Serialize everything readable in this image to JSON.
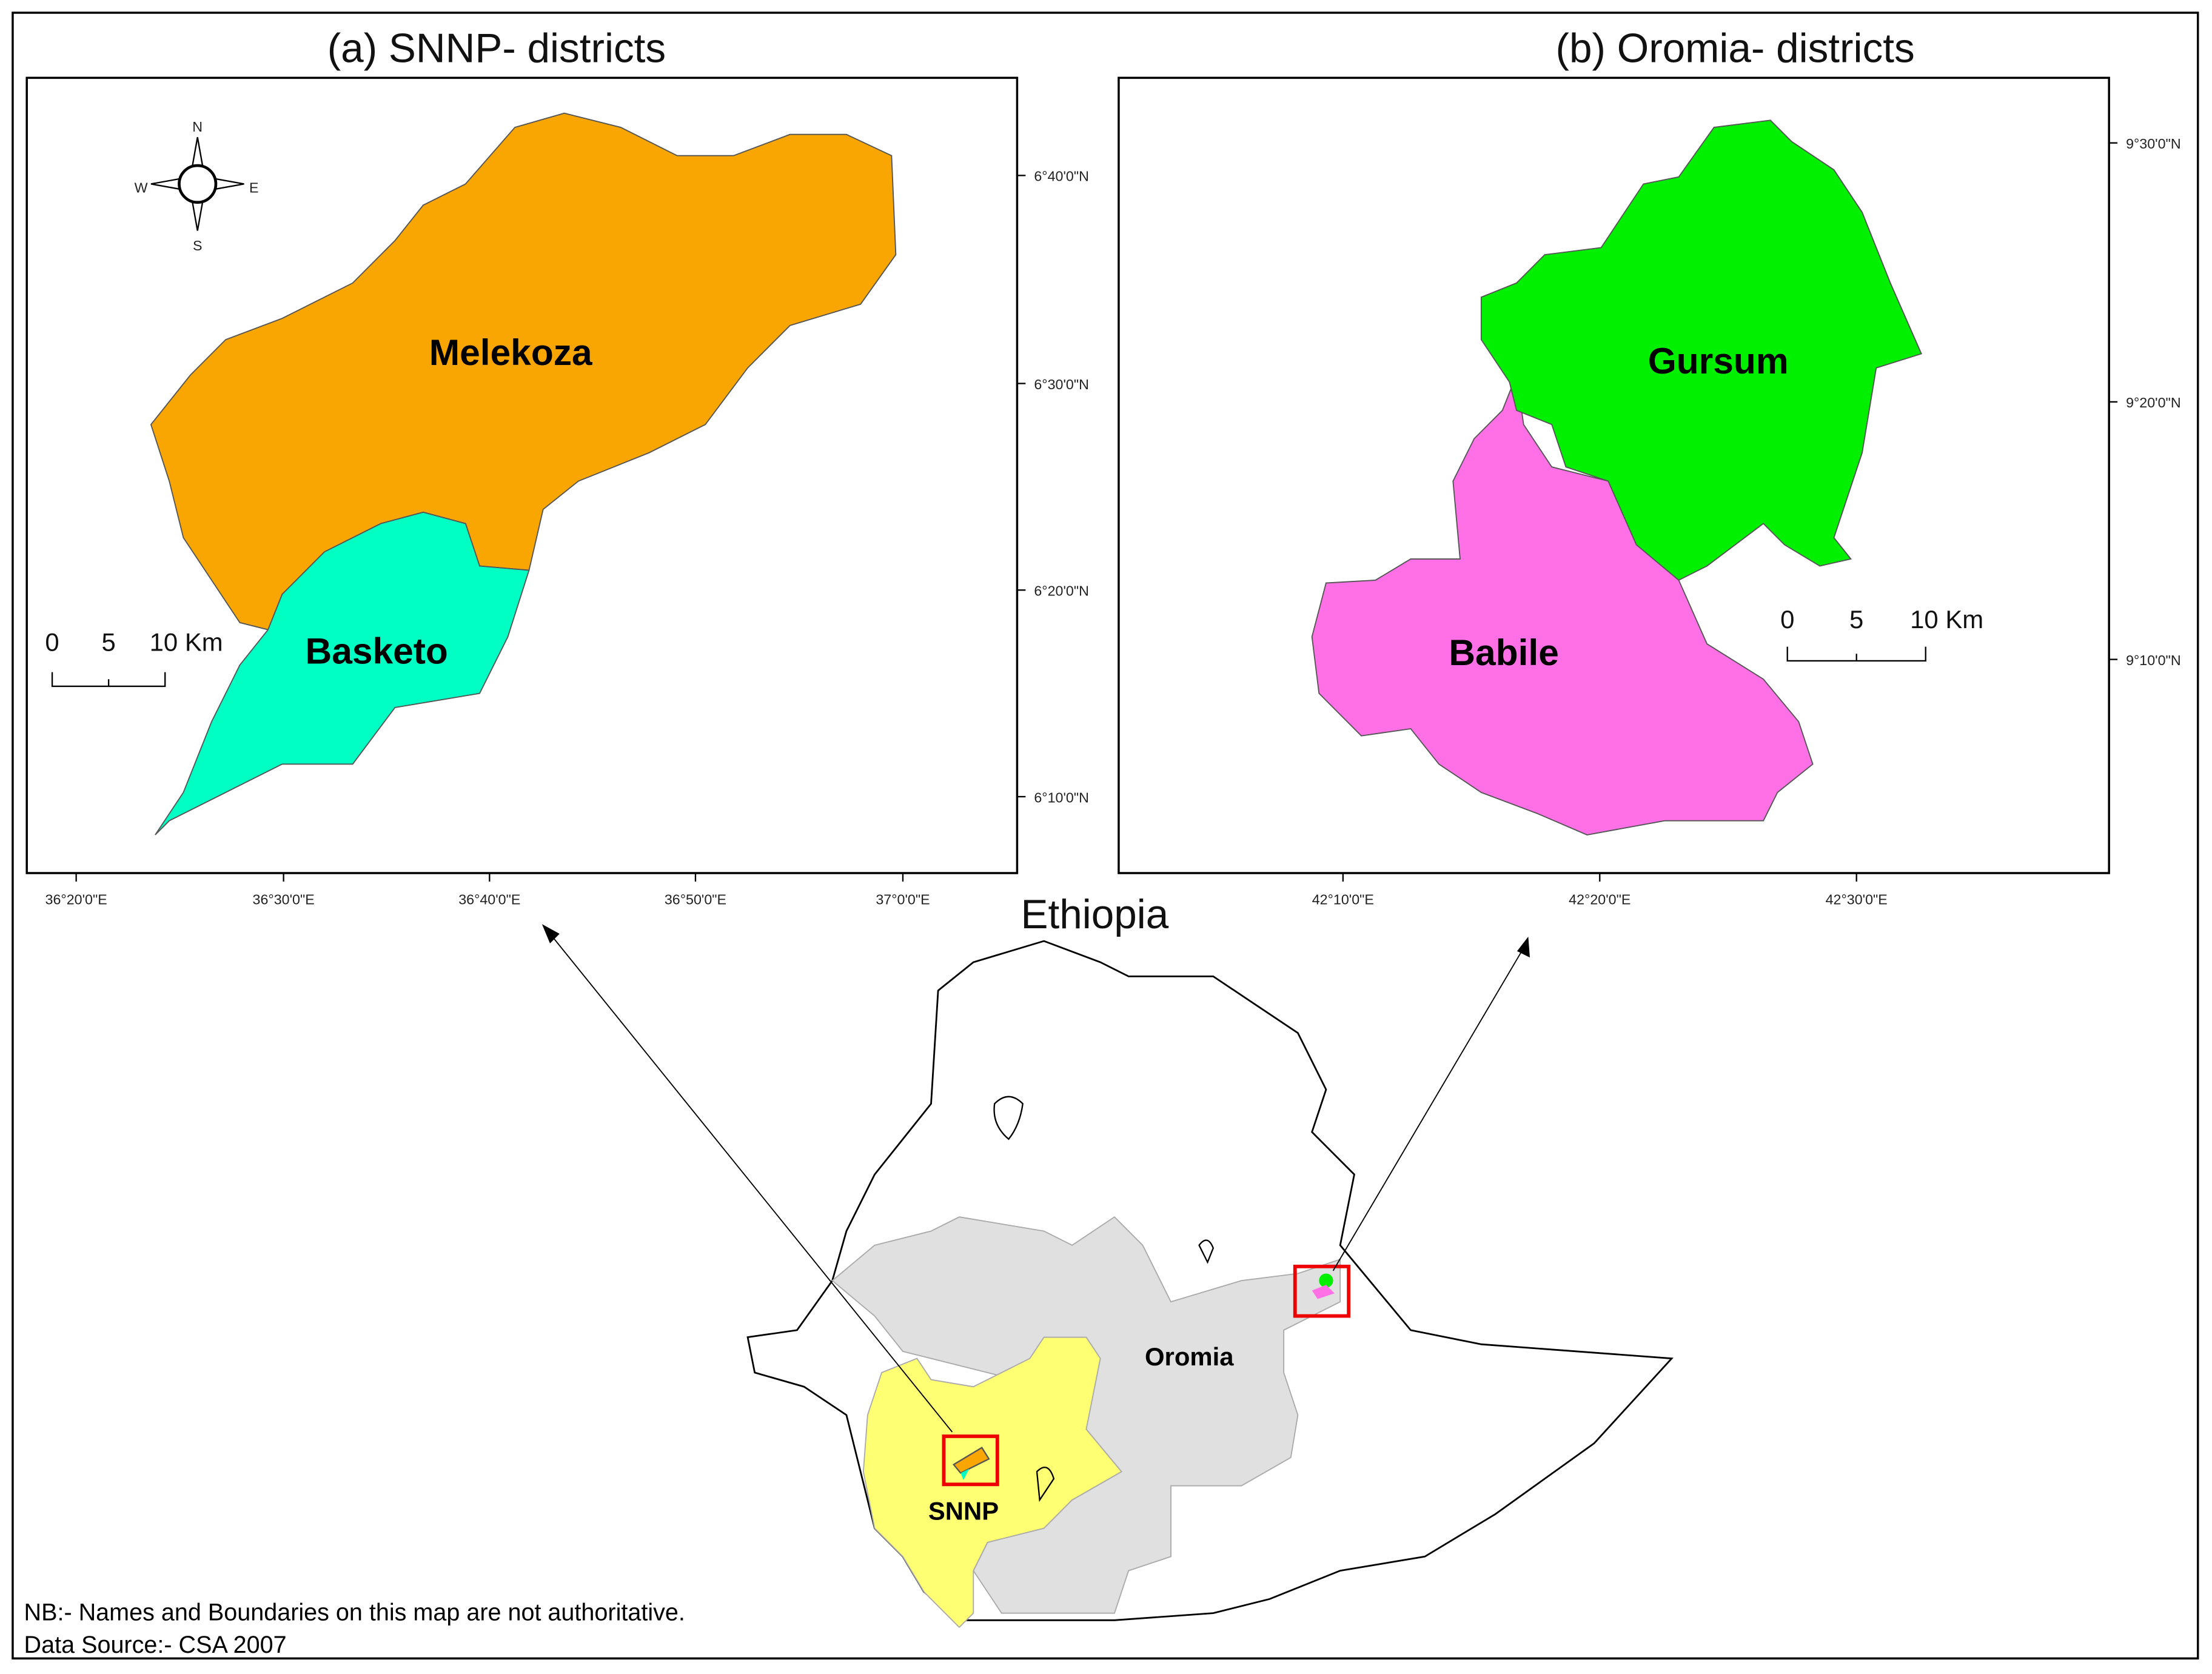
{
  "panels": [
    {
      "title": "(a) SNNP- districts",
      "districts": [
        "Melekoza",
        "Basketo"
      ],
      "lat_labels": [
        "6°40'0\"N",
        "6°30'0\"N",
        "6°20'0\"N",
        "6°10'0\"N"
      ],
      "lon_labels": [
        "36°20'0\"E",
        "36°30'0\"E",
        "36°40'0\"E",
        "36°50'0\"E",
        "37°0'0\"E"
      ],
      "scale_labels": [
        "0",
        "5",
        "10 Km"
      ]
    },
    {
      "title": "(b) Oromia- districts",
      "districts": [
        "Gursum",
        "Babile"
      ],
      "lat_labels": [
        "9°30'0\"N",
        "9°20'0\"N",
        "9°10'0\"N"
      ],
      "lon_labels": [
        "42°10'0\"E",
        "42°20'0\"E",
        "42°30'0\"E"
      ],
      "scale_labels": [
        "0",
        "5",
        "10 Km"
      ]
    }
  ],
  "compass": {
    "north": "N",
    "east": "E",
    "south": "S",
    "west": "W"
  },
  "overview": {
    "title": "Ethiopia",
    "regions": [
      "Oromia",
      "SNNP"
    ]
  },
  "notes": [
    "NB:- Names and Boundaries on this map are not authoritative.",
    "Data Source:- CSA 2007"
  ]
}
